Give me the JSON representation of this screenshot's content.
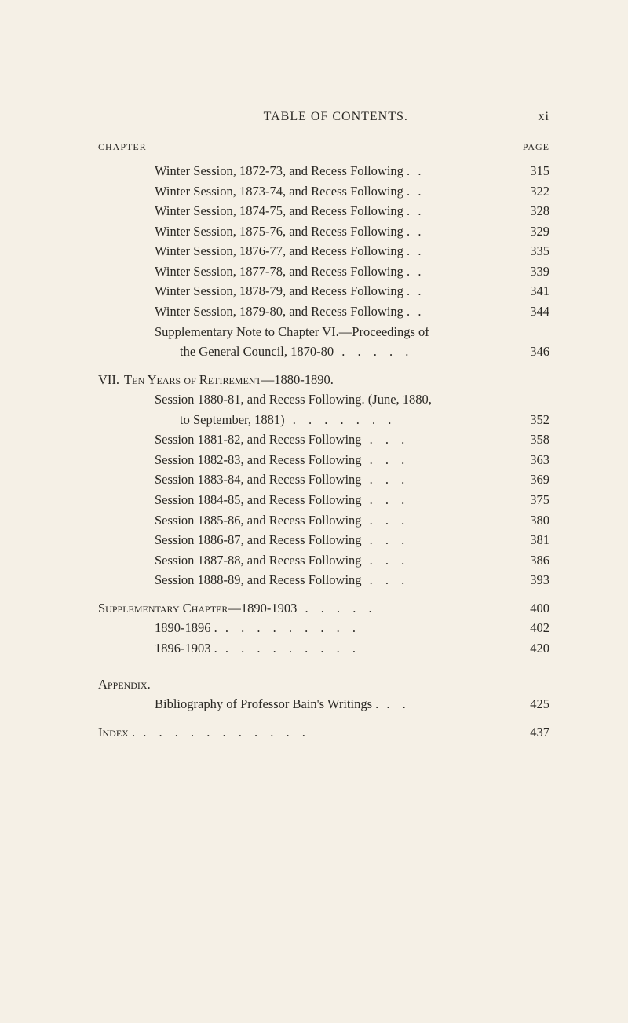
{
  "colors": {
    "background": "#f5f0e6",
    "text": "#2a2824"
  },
  "typography": {
    "font_family": "Times New Roman, Georgia, serif",
    "body_fontsize": 16.5,
    "header_fontsize": 16,
    "subheader_fontsize": 12,
    "line_height": 1.55
  },
  "header": {
    "title": "TABLE OF CONTENTS.",
    "page_num": "xi"
  },
  "subheader": {
    "left": "CHAPTER",
    "right": "PAGE"
  },
  "chapter_vi_continuation": [
    {
      "text": "Winter Session, 1872-73, and Recess Following .",
      "dots": " .",
      "page": "315"
    },
    {
      "text": "Winter Session, 1873-74, and Recess Following .",
      "dots": " .",
      "page": "322"
    },
    {
      "text": "Winter Session, 1874-75, and Recess Following .",
      "dots": " .",
      "page": "328"
    },
    {
      "text": "Winter Session, 1875-76, and Recess Following .",
      "dots": " .",
      "page": "329"
    },
    {
      "text": "Winter Session, 1876-77, and Recess Following .",
      "dots": " .",
      "page": "335"
    },
    {
      "text": "Winter Session, 1877-78, and Recess Following .",
      "dots": " .",
      "page": "339"
    },
    {
      "text": "Winter Session, 1878-79, and Recess Following .",
      "dots": " .",
      "page": "341"
    },
    {
      "text": "Winter Session, 1879-80, and Recess Following .",
      "dots": " .",
      "page": "344"
    },
    {
      "text": "Supplementary Note to Chapter VI.—Proceedings of",
      "dots": "",
      "page": ""
    },
    {
      "text": "the General Council, 1870-80",
      "dots": " . . . .  .",
      "page": "346",
      "continuation": true
    }
  ],
  "chapter_vii": {
    "num": "VII.",
    "title": "Ten Years of Retirement—1880-1890.",
    "entries": [
      {
        "text": "Session 1880-81, and Recess Following.   (June, 1880,",
        "dots": "",
        "page": ""
      },
      {
        "text": "to September, 1881)",
        "dots": " .  .  .  .  .  .  .",
        "page": "352",
        "continuation": true
      },
      {
        "text": "Session 1881-82, and Recess Following",
        "dots": "  .  .  .",
        "page": "358"
      },
      {
        "text": "Session 1882-83, and Recess Following",
        "dots": "  .  .  .",
        "page": "363"
      },
      {
        "text": "Session 1883-84, and Recess Following",
        "dots": "  .  .  .",
        "page": "369"
      },
      {
        "text": "Session 1884-85, and Recess Following",
        "dots": "  .  .  .",
        "page": "375"
      },
      {
        "text": "Session 1885-86, and Recess Following",
        "dots": "  .  .  .",
        "page": "380"
      },
      {
        "text": "Session 1886-87, and Recess Following",
        "dots": "  .  .  .",
        "page": "381"
      },
      {
        "text": "Session 1887-88, and Recess Following",
        "dots": "  .  .  .",
        "page": "386"
      },
      {
        "text": "Session 1888-89, and Recess Following",
        "dots": "  .  .  .",
        "page": "393"
      }
    ]
  },
  "supplementary": {
    "title_text": "Supplementary Chapter—1890-1903",
    "title_dots": "  .  .  .  .  .",
    "title_page": "400",
    "entries": [
      {
        "text": "1890-1896 .",
        "dots": "  .  .  .  .  .  .  .  .  .",
        "page": "402"
      },
      {
        "text": "1896-1903 .",
        "dots": "  .  .  .  .  .  .  .  .  .",
        "page": "420"
      }
    ]
  },
  "appendix": {
    "title": "Appendix.",
    "entries": [
      {
        "text": "Bibliography of Professor Bain's Writings .",
        "dots": "  .  .",
        "page": "425"
      }
    ]
  },
  "index": {
    "text": "Index .",
    "dots": "  .  .  .  .  .  .  .  .  .  .  .",
    "page": "437"
  }
}
